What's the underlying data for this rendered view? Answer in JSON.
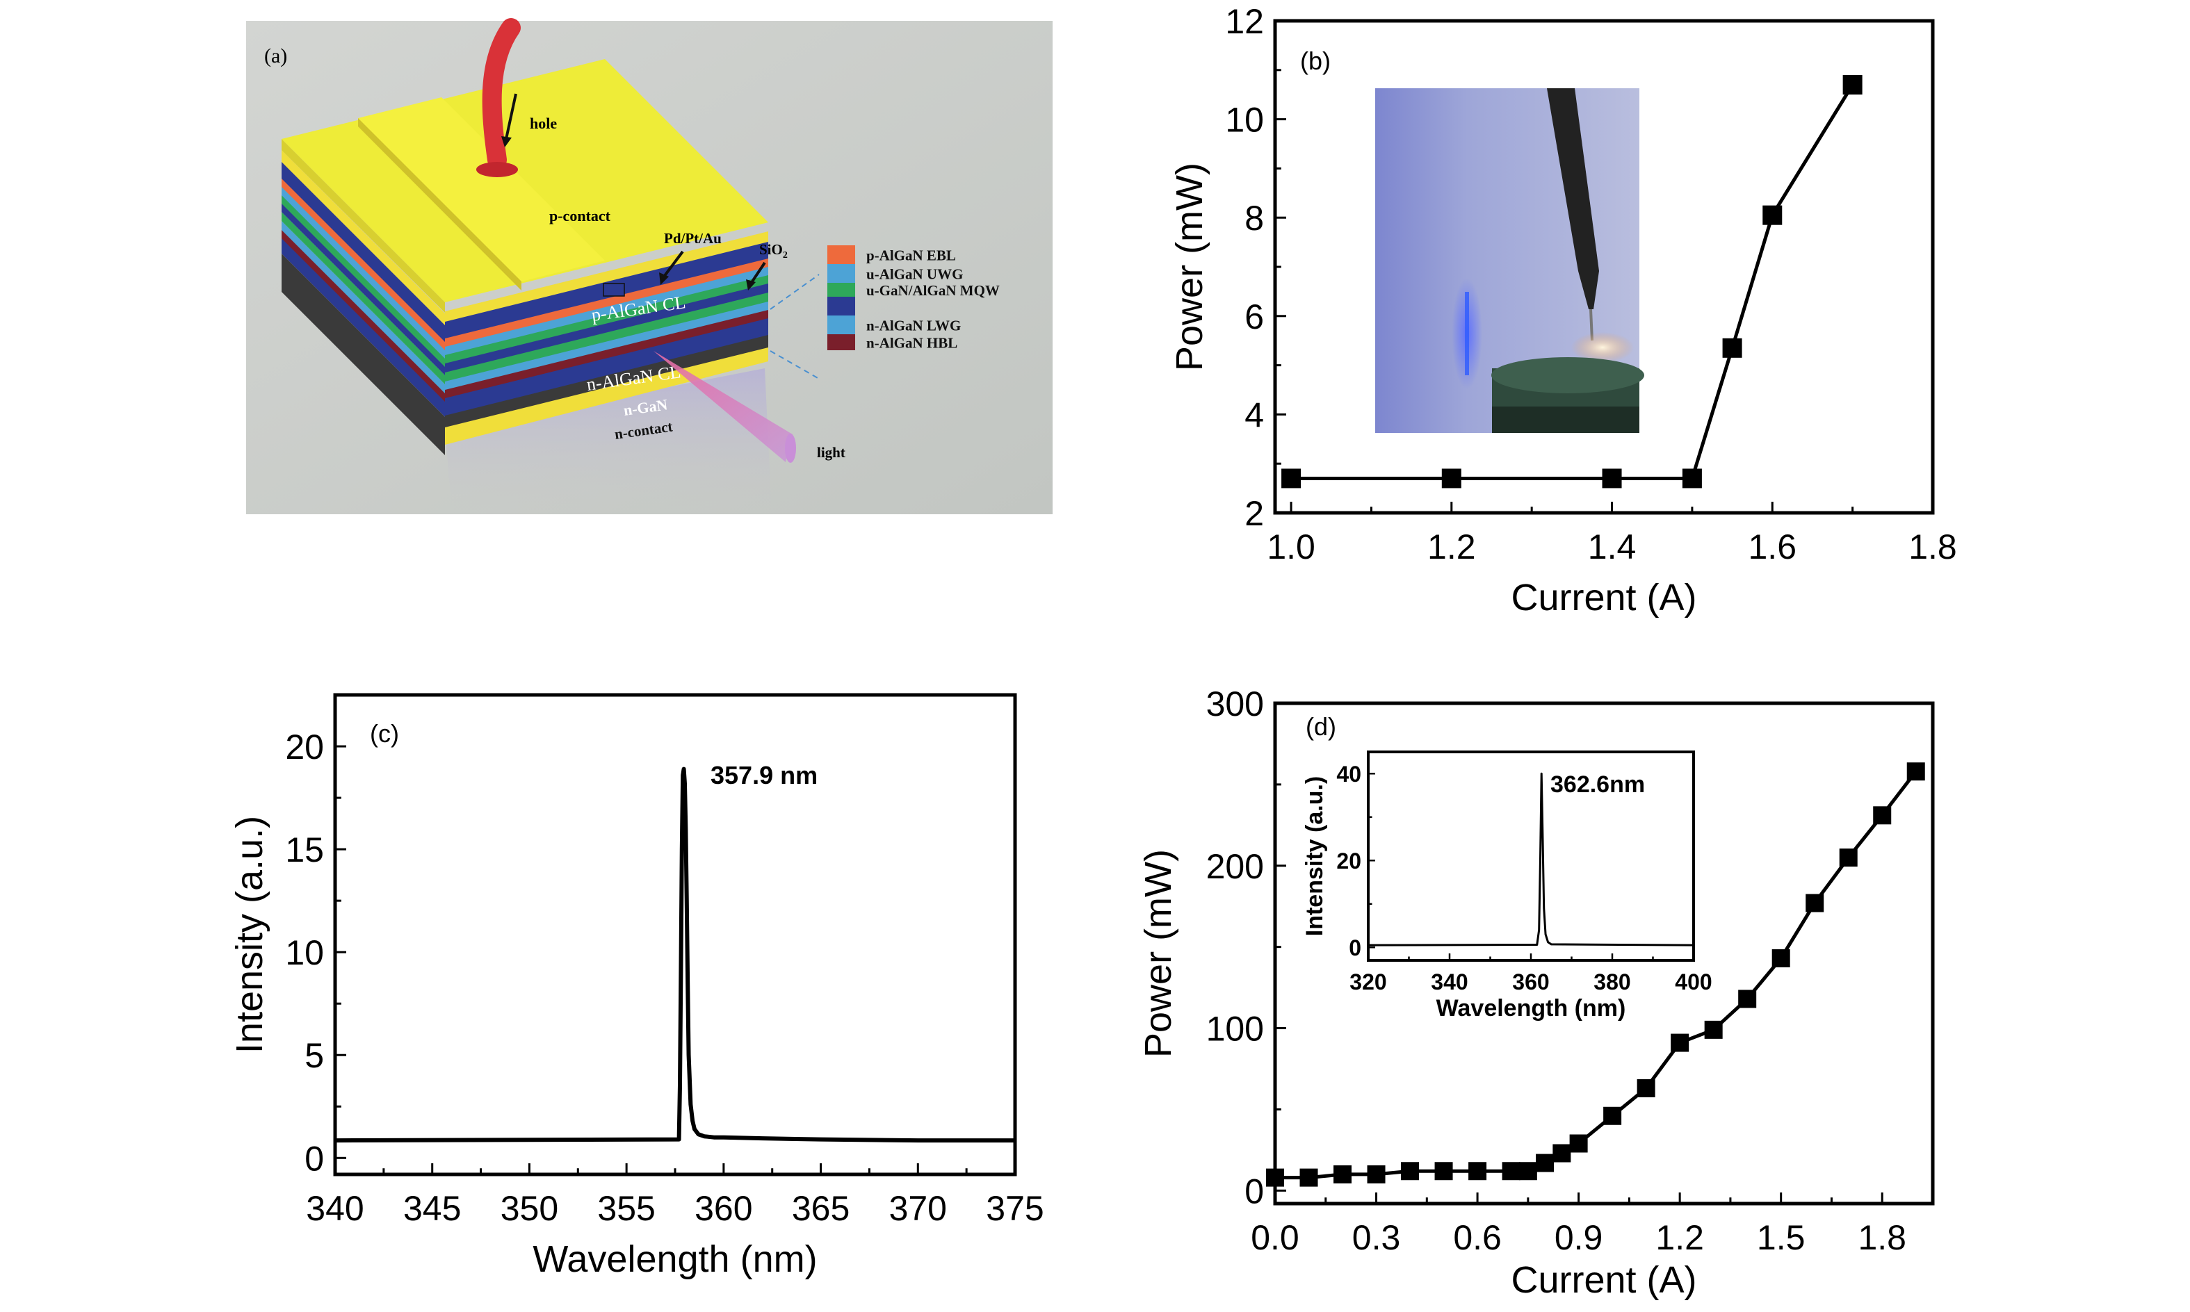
{
  "panel_a": {
    "label": "(a)",
    "labels": {
      "hole": "hole",
      "p_contact": "p-contact",
      "pd_pt_au": "Pd/Pt/Au",
      "sio2": "SiO",
      "sio2_sub": "2",
      "p_algan_cl": "p-AlGaN CL",
      "n_algan_cl": "n-AlGaN CL",
      "n_gan": "n-GaN",
      "n_contact": "n-contact",
      "light": "light"
    },
    "layer_legend": [
      {
        "label": "p-AlGaN EBL",
        "color": "#ee6a3c"
      },
      {
        "label": "u-AlGaN UWG",
        "color": "#4da3d6"
      },
      {
        "label": "u-GaN/AlGaN MQW",
        "color": "#2ea85a"
      },
      {
        "label": "",
        "color": "#2b3a92"
      },
      {
        "label": "n-AlGaN LWG",
        "color": "#4da3d6"
      },
      {
        "label": "n-AlGaN HBL",
        "color": "#7a1f2b"
      }
    ]
  },
  "chart_data": [
    {
      "panel": "(b)",
      "type": "line",
      "xlabel": "Current (A)",
      "ylabel": "Power (mW)",
      "xlim": [
        0.98,
        1.8
      ],
      "ylim": [
        2,
        12
      ],
      "xticks": [
        1.0,
        1.2,
        1.4,
        1.6,
        1.8
      ],
      "yticks": [
        2,
        4,
        6,
        8,
        10,
        12
      ],
      "xtick_labels": [
        "1.0",
        "1.2",
        "1.4",
        "1.6",
        "1.8"
      ],
      "ytick_labels": [
        "2",
        "4",
        "6",
        "8",
        "10",
        "12"
      ],
      "series": [
        {
          "x": [
            1.0,
            1.2,
            1.4,
            1.5,
            1.55,
            1.6,
            1.7
          ],
          "y": [
            2.7,
            2.7,
            2.7,
            2.7,
            5.35,
            8.05,
            10.7
          ],
          "marker": "square"
        }
      ],
      "inset": "photograph"
    },
    {
      "panel": "(c)",
      "type": "line",
      "xlabel": "Wavelength (nm)",
      "ylabel": "Intensity (a.u.)",
      "xlim": [
        340,
        375
      ],
      "ylim": [
        -0.8,
        22.5
      ],
      "xticks": [
        340,
        345,
        350,
        355,
        360,
        365,
        370,
        375
      ],
      "yticks": [
        0,
        5,
        10,
        15,
        20
      ],
      "xtick_labels": [
        "340",
        "345",
        "350",
        "355",
        "360",
        "365",
        "370",
        "375"
      ],
      "ytick_labels": [
        "0",
        "5",
        "10",
        "15",
        "20"
      ],
      "annotation": "357.9 nm",
      "series": [
        {
          "x": [
            340,
            357.7,
            357.75,
            357.8,
            357.85,
            357.9,
            357.95,
            358.0,
            358.05,
            358.1,
            358.15,
            358.2,
            358.3,
            358.4,
            358.5,
            358.7,
            359.0,
            359.5,
            360,
            362,
            365,
            370,
            375
          ],
          "y": [
            0.85,
            0.9,
            3.5,
            9,
            15,
            18.6,
            18.9,
            18.2,
            16.0,
            12.5,
            8.5,
            5.0,
            2.6,
            1.8,
            1.4,
            1.15,
            1.05,
            1.0,
            1.0,
            0.95,
            0.9,
            0.85,
            0.85
          ]
        }
      ]
    },
    {
      "panel": "(d)",
      "type": "line",
      "xlabel": "Current (A)",
      "ylabel": "Power (mW)",
      "xlim": [
        0,
        1.95
      ],
      "ylim": [
        -8,
        300
      ],
      "xticks": [
        0.0,
        0.3,
        0.6,
        0.9,
        1.2,
        1.5,
        1.8
      ],
      "yticks": [
        0,
        100,
        200,
        300
      ],
      "xtick_labels": [
        "0.0",
        "0.3",
        "0.6",
        "0.9",
        "1.2",
        "1.5",
        "1.8"
      ],
      "ytick_labels": [
        "0",
        "100",
        "200",
        "300"
      ],
      "series": [
        {
          "x": [
            0.0,
            0.1,
            0.2,
            0.3,
            0.4,
            0.5,
            0.6,
            0.7,
            0.75,
            0.8,
            0.85,
            0.9,
            1.0,
            1.1,
            1.2,
            1.3,
            1.4,
            1.5,
            1.6,
            1.7,
            1.8,
            1.9
          ],
          "y": [
            8,
            8,
            10,
            10,
            12,
            12,
            12,
            12,
            12,
            17,
            23,
            29,
            46,
            63,
            91,
            99,
            118,
            143,
            177,
            205,
            231,
            258
          ],
          "marker": "square"
        }
      ],
      "inset": {
        "type": "line",
        "xlabel": "Wavelength (nm)",
        "ylabel": "Intensity (a.u.)",
        "xlim": [
          320,
          400
        ],
        "ylim": [
          -3,
          45
        ],
        "xticks": [
          320,
          340,
          360,
          380,
          400
        ],
        "yticks": [
          0,
          20,
          40
        ],
        "xtick_labels": [
          "320",
          "340",
          "360",
          "380",
          "400"
        ],
        "ytick_labels": [
          "0",
          "20",
          "40"
        ],
        "annotation": "362.6nm",
        "series": [
          {
            "x": [
              320,
              361.5,
              362.0,
              362.3,
              362.6,
              362.9,
              363.2,
              363.6,
              364.2,
              365,
              400
            ],
            "y": [
              0.5,
              0.6,
              4,
              20,
              40,
              25,
              9,
              3,
              1.2,
              0.7,
              0.5
            ]
          }
        ]
      }
    }
  ]
}
